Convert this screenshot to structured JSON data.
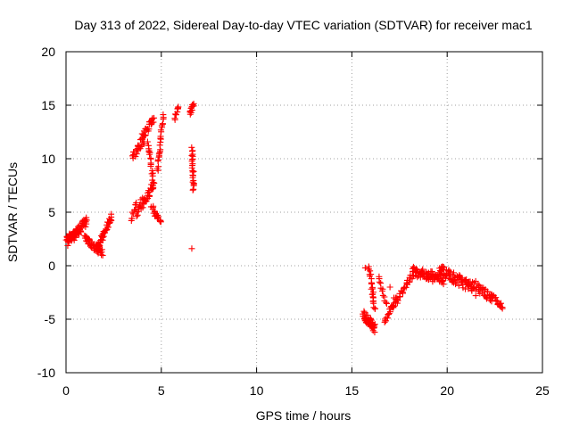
{
  "chart_data": {
    "type": "scatter",
    "title": "Day 313 of 2022, Sidereal Day-to-day VTEC variation (SDTVAR) for receiver mac1",
    "xlabel": "GPS time / hours",
    "ylabel": "SDTVAR / TECUs",
    "xlim": [
      0,
      25
    ],
    "ylim": [
      -10,
      20
    ],
    "xticks": [
      0,
      5,
      10,
      15,
      20,
      25
    ],
    "yticks": [
      -10,
      -5,
      0,
      5,
      10,
      15,
      20
    ],
    "xtick_labels": [
      "0",
      "5",
      "10",
      "15",
      "20",
      "25"
    ],
    "ytick_labels": [
      "-10",
      "-5",
      "0",
      "5",
      "10",
      "15",
      "20"
    ],
    "grid": true,
    "marker": "+",
    "color": "#ff0000",
    "segments": [
      {
        "x0": 0.0,
        "x1": 0.6,
        "y0": 2.5,
        "y1": 3.2,
        "spread": 0.6,
        "n": 45,
        "seed": 1
      },
      {
        "x0": 0.1,
        "x1": 1.1,
        "y0": 2.2,
        "y1": 4.2,
        "spread": 0.9,
        "n": 55,
        "seed": 2
      },
      {
        "x0": 1.0,
        "x1": 1.9,
        "y0": 2.5,
        "y1": 1.2,
        "spread": 0.7,
        "n": 45,
        "seed": 3
      },
      {
        "x0": 1.6,
        "x1": 2.4,
        "y0": 1.5,
        "y1": 4.6,
        "spread": 0.6,
        "n": 40,
        "seed": 4
      },
      {
        "x0": 3.4,
        "x1": 3.7,
        "y0": 4.2,
        "y1": 6.0,
        "spread": 0.4,
        "n": 10,
        "seed": 5
      },
      {
        "x0": 3.5,
        "x1": 4.1,
        "y0": 10.2,
        "y1": 11.8,
        "spread": 0.8,
        "n": 25,
        "seed": 6
      },
      {
        "x0": 3.7,
        "x1": 4.6,
        "y0": 5.0,
        "y1": 7.5,
        "spread": 1.0,
        "n": 35,
        "seed": 7
      },
      {
        "x0": 4.0,
        "x1": 4.6,
        "y0": 12.0,
        "y1": 13.8,
        "spread": 0.8,
        "n": 25,
        "seed": 8
      },
      {
        "x0": 4.3,
        "x1": 4.6,
        "y0": 11.5,
        "y1": 7.5,
        "spread": 0.4,
        "n": 20,
        "seed": 9
      },
      {
        "x0": 4.5,
        "x1": 5.0,
        "y0": 5.5,
        "y1": 4.0,
        "spread": 0.6,
        "n": 20,
        "seed": 10
      },
      {
        "x0": 4.8,
        "x1": 5.1,
        "y0": 9.0,
        "y1": 14.0,
        "spread": 0.5,
        "n": 25,
        "seed": 11
      },
      {
        "x0": 5.7,
        "x1": 5.9,
        "y0": 13.8,
        "y1": 14.8,
        "spread": 0.4,
        "n": 10,
        "seed": 12
      },
      {
        "x0": 6.5,
        "x1": 6.7,
        "y0": 14.2,
        "y1": 15.3,
        "spread": 0.4,
        "n": 12,
        "seed": 13
      },
      {
        "x0": 6.6,
        "x1": 6.7,
        "y0": 11.0,
        "y1": 7.0,
        "spread": 0.3,
        "n": 25,
        "seed": 14
      },
      {
        "x0": 15.6,
        "x1": 16.2,
        "y0": -4.5,
        "y1": -5.9,
        "spread": 0.8,
        "n": 45,
        "seed": 15
      },
      {
        "x0": 15.9,
        "x1": 16.2,
        "y0": -0.2,
        "y1": -4.0,
        "spread": 0.6,
        "n": 25,
        "seed": 16
      },
      {
        "x0": 16.4,
        "x1": 16.8,
        "y0": -1.0,
        "y1": -3.5,
        "spread": 0.5,
        "n": 12,
        "seed": 17
      },
      {
        "x0": 16.7,
        "x1": 17.3,
        "y0": -5.5,
        "y1": -3.0,
        "spread": 0.6,
        "n": 20,
        "seed": 18
      },
      {
        "x0": 17.1,
        "x1": 18.2,
        "y0": -4.0,
        "y1": -0.8,
        "spread": 0.7,
        "n": 35,
        "seed": 19
      },
      {
        "x0": 18.2,
        "x1": 19.8,
        "y0": -0.5,
        "y1": -1.3,
        "spread": 0.9,
        "n": 70,
        "seed": 20
      },
      {
        "x0": 19.6,
        "x1": 21.3,
        "y0": -0.4,
        "y1": -2.0,
        "spread": 1.0,
        "n": 75,
        "seed": 21
      },
      {
        "x0": 21.3,
        "x1": 22.9,
        "y0": -1.6,
        "y1": -3.8,
        "spread": 0.8,
        "n": 55,
        "seed": 22
      }
    ],
    "points": [
      {
        "x": 6.6,
        "y": 1.6
      },
      {
        "x": 15.7,
        "y": -0.2
      },
      {
        "x": 17.0,
        "y": -2.0
      },
      {
        "x": 21.5,
        "y": -2.8
      }
    ]
  }
}
